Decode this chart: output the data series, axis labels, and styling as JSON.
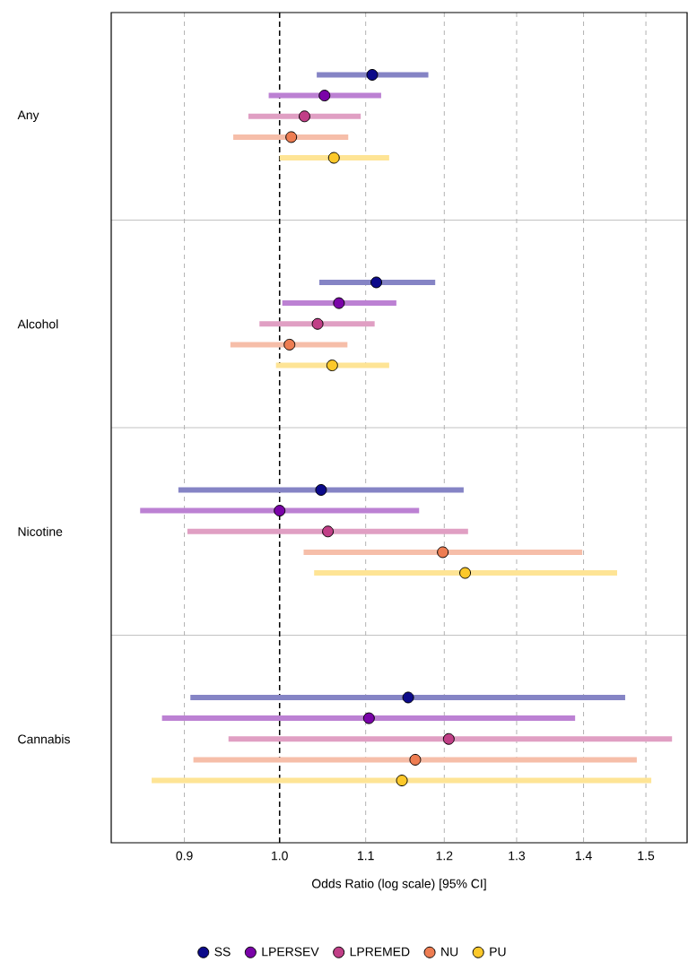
{
  "chart_data": {
    "type": "scatter",
    "orientation": "horizontal",
    "categories": [
      "Any",
      "Alcohol",
      "Nicotine",
      "Cannabis"
    ],
    "xlabel": "Odds Ratio (log scale) [95% CI]",
    "log": "x",
    "xlim": [
      0.83,
      1.57
    ],
    "xticks": [
      0.9,
      {
        "value": 1,
        "label": "1.0"
      },
      1.1,
      1.2,
      1.3,
      1.4,
      1.5
    ],
    "grid": "x",
    "legend": "bottom",
    "ref_lines": [
      {
        "axis": "x",
        "value": 1,
        "color": "#000000",
        "line_style": "dashed"
      }
    ],
    "series": [
      {
        "name": "SS",
        "color": "#0c0a8a",
        "values": [
          1.108,
          1.113,
          1.047,
          1.153
        ],
        "errors": [
          [
            1.042,
            1.179
          ],
          [
            1.045,
            1.188
          ],
          [
            0.894,
            1.226
          ],
          [
            0.906,
            1.466
          ]
        ]
      },
      {
        "name": "LPERSEV",
        "color": "#7a03a8",
        "values": [
          1.051,
          1.068,
          1.0,
          1.104
        ],
        "errors": [
          [
            0.988,
            1.119
          ],
          [
            1.003,
            1.138
          ],
          [
            0.857,
            1.167
          ],
          [
            0.878,
            1.387
          ]
        ]
      },
      {
        "name": "LPREMED",
        "color": "#c13f87",
        "values": [
          1.028,
          1.043,
          1.055,
          1.206
        ],
        "errors": [
          [
            0.966,
            1.094
          ],
          [
            0.978,
            1.111
          ],
          [
            0.903,
            1.232
          ],
          [
            0.945,
            1.544
          ]
        ]
      },
      {
        "name": "NU",
        "color": "#ee7d52",
        "values": [
          1.013,
          1.011,
          1.198,
          1.162
        ],
        "errors": [
          [
            0.95,
            1.079
          ],
          [
            0.947,
            1.078
          ],
          [
            1.027,
            1.398
          ],
          [
            0.909,
            1.485
          ]
        ]
      },
      {
        "name": "PU",
        "color": "#fcc82a",
        "values": [
          1.062,
          1.06,
          1.228,
          1.145
        ],
        "errors": [
          [
            1.0,
            1.129
          ],
          [
            0.996,
            1.129
          ],
          [
            1.039,
            1.453
          ],
          [
            0.868,
            1.509
          ]
        ]
      }
    ]
  }
}
